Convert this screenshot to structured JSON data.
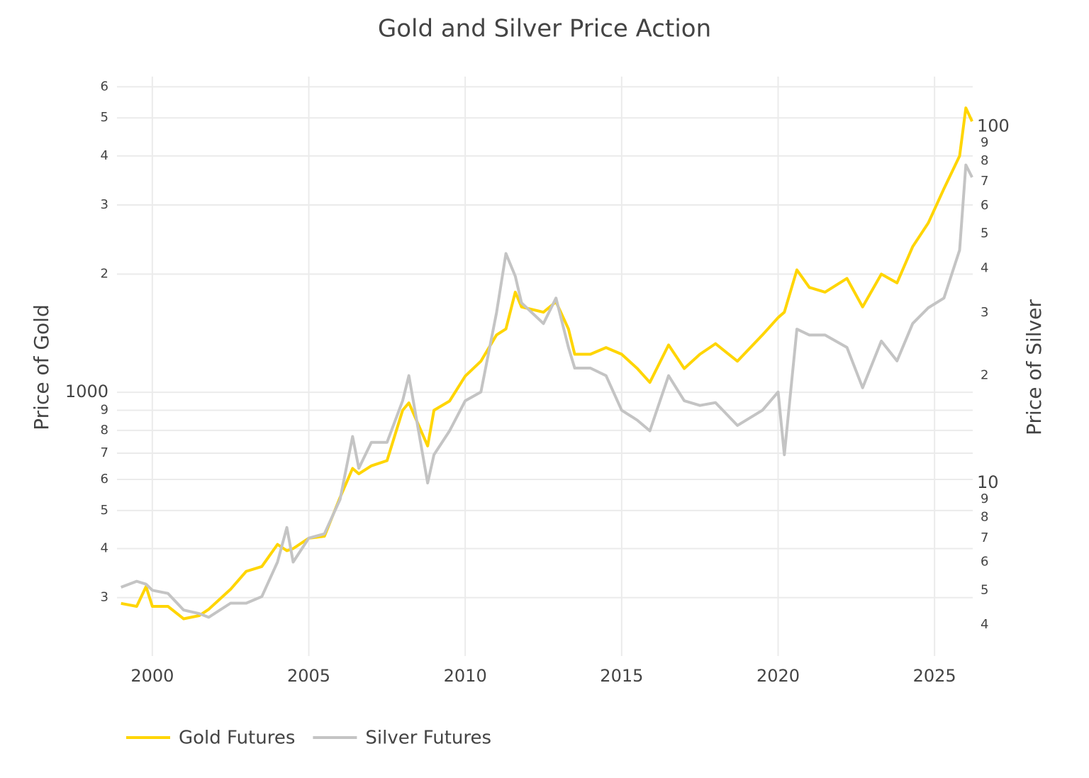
{
  "chart_data": {
    "type": "line",
    "title": "Gold and Silver Price Action",
    "y_label": "Price of Gold",
    "y2_label": "Price of Silver",
    "x": [
      1999,
      1999.5,
      1999.8,
      2000,
      2000.5,
      2001,
      2001.5,
      2001.8,
      2002.5,
      2003,
      2003.5,
      2004,
      2004.3,
      2004.5,
      2005,
      2005.5,
      2006,
      2006.4,
      2006.6,
      2007,
      2007.5,
      2008,
      2008.2,
      2008.8,
      2009,
      2009.5,
      2010,
      2010.5,
      2011,
      2011.3,
      2011.6,
      2011.8,
      2012.5,
      2012.9,
      2013.3,
      2013.5,
      2014,
      2014.5,
      2015,
      2015.5,
      2015.9,
      2016.5,
      2017,
      2017.5,
      2018,
      2018.7,
      2019.5,
      2020,
      2020.2,
      2020.6,
      2021,
      2021.5,
      2022.2,
      2022.7,
      2023.3,
      2023.8,
      2024.3,
      2024.8,
      2025.3,
      2025.8,
      2026,
      2026.2
    ],
    "series": [
      {
        "name": "Gold Futures",
        "color": "#ffd500",
        "axis": "y",
        "values": [
          290,
          285,
          320,
          285,
          285,
          265,
          270,
          280,
          315,
          350,
          360,
          410,
          395,
          400,
          425,
          430,
          540,
          640,
          620,
          650,
          670,
          900,
          940,
          730,
          900,
          950,
          1100,
          1200,
          1400,
          1450,
          1800,
          1650,
          1600,
          1700,
          1450,
          1250,
          1250,
          1300,
          1250,
          1150,
          1060,
          1320,
          1150,
          1250,
          1330,
          1200,
          1400,
          1550,
          1600,
          2050,
          1850,
          1800,
          1950,
          1650,
          2000,
          1900,
          2350,
          2700,
          3300,
          4000,
          5300,
          4900
        ]
      },
      {
        "name": "Silver Futures",
        "color": "#c4c4c4",
        "axis": "y2",
        "values": [
          5.1,
          5.3,
          5.2,
          5.0,
          4.9,
          4.4,
          4.3,
          4.2,
          4.6,
          4.6,
          4.8,
          6.0,
          7.5,
          6.0,
          7.0,
          7.2,
          9.0,
          13.5,
          11,
          13,
          13,
          17,
          20,
          10,
          12,
          14,
          17,
          18,
          30,
          44,
          38,
          32,
          28,
          33,
          24,
          21,
          21,
          20,
          16,
          15,
          14,
          20,
          17,
          16.5,
          16.8,
          14.5,
          16,
          18,
          12,
          27,
          26,
          26,
          24,
          18.5,
          25,
          22,
          28,
          31,
          33,
          45,
          78,
          72
        ]
      }
    ],
    "xlim": [
      1998.87,
      2026.22
    ],
    "xticks": [
      2000,
      2005,
      2010,
      2015,
      2020,
      2025
    ],
    "ylog": true,
    "ylim": [
      213,
      6370
    ],
    "yticks": [
      {
        "value": 300,
        "label": "3"
      },
      {
        "value": 400,
        "label": "4"
      },
      {
        "value": 500,
        "label": "5"
      },
      {
        "value": 600,
        "label": "6"
      },
      {
        "value": 700,
        "label": "7"
      },
      {
        "value": 800,
        "label": "8"
      },
      {
        "value": 900,
        "label": "9"
      },
      1000,
      {
        "value": 2000,
        "label": "2"
      },
      {
        "value": 3000,
        "label": "3"
      },
      {
        "value": 4000,
        "label": "4"
      },
      {
        "value": 5000,
        "label": "5"
      },
      {
        "value": 6000,
        "label": "6"
      }
    ],
    "y2lim": [
      3.27,
      138
    ],
    "y2ticks": [
      4,
      5,
      6,
      7,
      8,
      9,
      10,
      {
        "value": 20,
        "label": "2"
      },
      {
        "value": 30,
        "label": "3"
      },
      {
        "value": 40,
        "label": "4"
      },
      {
        "value": 50,
        "label": "5"
      },
      {
        "value": 60,
        "label": "6"
      },
      {
        "value": 70,
        "label": "7"
      },
      {
        "value": 80,
        "label": "8"
      },
      {
        "value": 90,
        "label": "9"
      },
      100
    ],
    "grid": true,
    "legend": "bottom-left"
  }
}
